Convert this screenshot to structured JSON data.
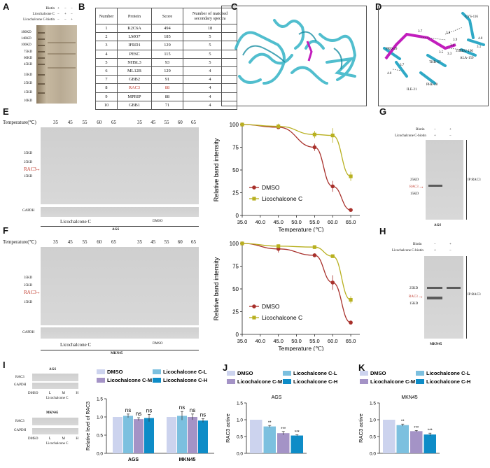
{
  "panel_labels": {
    "A": "A",
    "B": "B",
    "C": "C",
    "D": "D",
    "E": "E",
    "F": "F",
    "G": "G",
    "H": "H",
    "I": "I",
    "J": "J",
    "K": "K"
  },
  "panelA": {
    "rows": [
      "Biotin",
      "Licochalcone C",
      "Licochalcone C-biotin"
    ],
    "signs": [
      [
        "+",
        "−",
        "−"
      ],
      [
        "−",
        "+",
        "−"
      ],
      [
        "−",
        "−",
        "+"
      ]
    ],
    "markers": [
      "180KD",
      "140KD",
      "100KD",
      "75KD",
      "60KD",
      "45KD",
      "35KD",
      "25KD",
      "15KD",
      "10KD"
    ]
  },
  "panelB": {
    "headers": [
      "Number",
      "Protein",
      "Score",
      "Number of matched secondary spectra"
    ],
    "rows": [
      [
        "1",
        "K2C6A",
        "494",
        "18"
      ],
      [
        "2",
        "LMO7",
        "185",
        "5"
      ],
      [
        "3",
        "IFRD1",
        "129",
        "5"
      ],
      [
        "4",
        "PESC",
        "115",
        "5"
      ],
      [
        "5",
        "NHSL3",
        "93",
        "5"
      ],
      [
        "6",
        "ML12B",
        "129",
        "4"
      ],
      [
        "7",
        "GBB2",
        "91",
        "4"
      ],
      [
        "8",
        "RAC3",
        "88",
        "4"
      ],
      [
        "9",
        "MPRIP",
        "88",
        "4"
      ],
      [
        "10",
        "GBB1",
        "71",
        "4"
      ]
    ],
    "highlight_color": "#c0392b"
  },
  "panelD": {
    "residues": [
      "LYS-116",
      "PRO-29",
      "LEU-160",
      "ALA-159",
      "THR-17",
      "PHE-28",
      "ILE-21"
    ],
    "distances": [
      "3.7",
      "3.8",
      "3.9",
      "4.0",
      "3.1",
      "3.5",
      "3.1",
      "3.0",
      "3.3",
      "3.7",
      "4.0"
    ]
  },
  "panelE": {
    "temp_label": "Temperature(℃)",
    "temps": [
      "35",
      "45",
      "55",
      "60",
      "65"
    ],
    "markers": [
      "35KD",
      "25KD",
      "15KD"
    ],
    "rac3": "RAC3",
    "gapdh": "GAPDH",
    "left_caption": "Licochalcone C",
    "right_caption": "DMSO",
    "cell": "AGS"
  },
  "panelF": {
    "temp_label": "Temperature(℃)",
    "temps": [
      "35",
      "45",
      "55",
      "60",
      "65"
    ],
    "markers": [
      "35KD",
      "25KD",
      "15KD"
    ],
    "rac3": "RAC3",
    "gapdh": "GAPDH",
    "left_caption": "Licochalcone C",
    "right_caption": "DMSO",
    "cell": "MKN45"
  },
  "panelG": {
    "rows": [
      "Biotin",
      "Licochalcone C-biotin"
    ],
    "signs": [
      [
        "−",
        "+"
      ],
      [
        "+",
        "−"
      ]
    ],
    "markers": [
      "25KD",
      "15KD"
    ],
    "rac3": "RAC3",
    "ip": "IP:RAC3",
    "cell": "AGS"
  },
  "panelH": {
    "rows": [
      "Biotin",
      "Licochalcone C-biotin"
    ],
    "signs": [
      [
        "−",
        "+"
      ],
      [
        "+",
        "−"
      ]
    ],
    "markers": [
      "25KD",
      "15KD"
    ],
    "rac3": "RAC3",
    "ip": "IP:RAC3",
    "cell": "MKN45"
  },
  "panelI": {
    "ags": "AGS",
    "mkn": "MKN45",
    "rac3": "RAC3",
    "gapdh": "GAPDH",
    "lanes": [
      "DMSO",
      "L",
      "M",
      "H"
    ],
    "lico": "Licochalcone C"
  },
  "chart_data": [
    {
      "type": "line",
      "panel": "E",
      "xlabel": "Temperature (℃)",
      "ylabel": "Relative band intensity",
      "xlim": [
        35,
        67.5
      ],
      "ylim": [
        0,
        100
      ],
      "xticks": [
        "35.0",
        "40.0",
        "45.0",
        "50.0",
        "55.0",
        "60.0",
        "65.0"
      ],
      "yticks": [
        "0",
        "25",
        "50",
        "75",
        "100"
      ],
      "legend": "lower-left",
      "series": [
        {
          "name": "DMSO",
          "color": "#a8302b",
          "x": [
            35,
            45,
            55,
            60,
            65
          ],
          "y": [
            100,
            97,
            75,
            32,
            6
          ],
          "err": [
            0,
            2,
            4,
            6,
            1
          ]
        },
        {
          "name": "Licochalcone C",
          "color": "#b8b020",
          "x": [
            35,
            45,
            55,
            60,
            65
          ],
          "y": [
            100,
            98,
            89,
            88,
            43
          ],
          "err": [
            0,
            3,
            4,
            8,
            5
          ]
        }
      ]
    },
    {
      "type": "line",
      "panel": "F",
      "xlabel": "Temperature (℃)",
      "ylabel": "Relative band intensity",
      "xlim": [
        35,
        67.5
      ],
      "ylim": [
        0,
        100
      ],
      "xticks": [
        "35.0",
        "40.0",
        "45.0",
        "50.0",
        "55.0",
        "60.0",
        "65.0"
      ],
      "yticks": [
        "0",
        "25",
        "50",
        "75",
        "100"
      ],
      "legend": "lower-left",
      "series": [
        {
          "name": "DMSO",
          "color": "#a8302b",
          "x": [
            35,
            45,
            55,
            60,
            65
          ],
          "y": [
            100,
            94,
            87,
            57,
            13
          ],
          "err": [
            0,
            4,
            2,
            8,
            2
          ]
        },
        {
          "name": "Licochalcone C",
          "color": "#b8b020",
          "x": [
            35,
            45,
            55,
            60,
            65
          ],
          "y": [
            100,
            97,
            96,
            86,
            38
          ],
          "err": [
            0,
            2,
            2,
            2,
            4
          ]
        }
      ]
    },
    {
      "type": "bar",
      "panel": "I",
      "ylabel": "Relative level of RAC3",
      "ylim": [
        0,
        1.5
      ],
      "yticks": [
        "0.0",
        "0.5",
        "1.0",
        "1.5"
      ],
      "categories": [
        "AGS",
        "MKN45"
      ],
      "series": [
        {
          "name": "DMSO",
          "color": "#ccd3ee",
          "values": [
            1.0,
            1.0
          ],
          "err": [
            0,
            0
          ]
        },
        {
          "name": "Licochalcone C-L",
          "color": "#7cc0df",
          "values": [
            1.03,
            1.03
          ],
          "err": [
            0.05,
            0.12
          ]
        },
        {
          "name": "Licochalcone C-M",
          "color": "#a493c6",
          "values": [
            0.94,
            1.0
          ],
          "err": [
            0.04,
            0.08
          ]
        },
        {
          "name": "Licochalcone C-H",
          "color": "#0e8cc7",
          "values": [
            0.97,
            0.9
          ],
          "err": [
            0.1,
            0.05
          ]
        }
      ],
      "annotations": [
        "ns",
        "ns",
        "ns",
        "ns",
        "ns",
        "ns"
      ]
    },
    {
      "type": "bar",
      "panel": "J",
      "title": "AGS",
      "ylabel": "RAC3 active",
      "ylim": [
        0,
        1.5
      ],
      "yticks": [
        "0.0",
        "0.5",
        "1.0",
        "1.5"
      ],
      "categories": [
        "DMSO",
        "Licochalcone C-L",
        "Licochalcone C-M",
        "Licochalcone C-H"
      ],
      "values": [
        1.0,
        0.8,
        0.6,
        0.53
      ],
      "err": [
        0,
        0.03,
        0.05,
        0.02
      ],
      "colors": [
        "#ccd3ee",
        "#7cc0df",
        "#a493c6",
        "#0e8cc7"
      ],
      "annotations": [
        "",
        "**",
        "***",
        "***"
      ]
    },
    {
      "type": "bar",
      "panel": "K",
      "title": "MKN45",
      "ylabel": "RAC3 active",
      "ylim": [
        0,
        1.5
      ],
      "yticks": [
        "0.0",
        "0.5",
        "1.0",
        "1.5"
      ],
      "categories": [
        "DMSO",
        "Licochalcone C-L",
        "Licochalcone C-M",
        "Licochalcone C-H"
      ],
      "values": [
        1.0,
        0.84,
        0.66,
        0.56
      ],
      "err": [
        0,
        0.03,
        0.02,
        0.04
      ],
      "colors": [
        "#ccd3ee",
        "#7cc0df",
        "#a493c6",
        "#0e8cc7"
      ],
      "annotations": [
        "",
        "**",
        "***",
        "***"
      ]
    }
  ]
}
